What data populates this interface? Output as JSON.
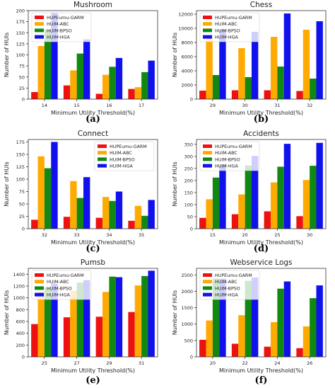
{
  "series_names": [
    "HUPEumu-GARM",
    "HUIM-ABC",
    "HUIM-BPSO",
    "HUIM-HGA"
  ],
  "series_colors": [
    "#ee1111",
    "#ffaa00",
    "#118811",
    "#1111ee"
  ],
  "xlabel": "Minimum Utility Threshold(%)",
  "ylabel": "Number of HUIs",
  "chart_data": [
    {
      "type": "bar",
      "title": "Mushroom",
      "caption": "(a)",
      "categories": [
        "14",
        "15",
        "16",
        "17"
      ],
      "ylim": [
        0,
        200
      ],
      "yticks": [
        0,
        25,
        50,
        75,
        100,
        125,
        150,
        175,
        200
      ],
      "xlabel": "Minimum Utility Threshold(%)",
      "ylabel": "Number of HUIs",
      "series": [
        {
          "name": "HUPEumu-GARM",
          "values": [
            16,
            31,
            12,
            23
          ]
        },
        {
          "name": "HUIM-ABC",
          "values": [
            120,
            65,
            55,
            27
          ]
        },
        {
          "name": "HUIM-BPSO",
          "values": [
            157,
            103,
            73,
            61
          ]
        },
        {
          "name": "HUIM-HGA",
          "values": [
            195,
            135,
            93,
            87
          ]
        }
      ],
      "legend": "top-left"
    },
    {
      "type": "bar",
      "title": "Chess",
      "caption": "(b)",
      "categories": [
        "29",
        "30",
        "31",
        "32"
      ],
      "ylim": [
        0,
        12500
      ],
      "yticks": [
        0,
        2000,
        4000,
        6000,
        8000,
        10000,
        12000
      ],
      "xlabel": "Minimum Utility Threshold(%)",
      "ylabel": "Number of HUIs",
      "series": [
        {
          "name": "HUPEumu-GARM",
          "values": [
            1200,
            1250,
            1250,
            1150
          ]
        },
        {
          "name": "HUIM-ABC",
          "values": [
            8800,
            7200,
            8800,
            9800
          ]
        },
        {
          "name": "HUIM-BPSO",
          "values": [
            3400,
            3100,
            4600,
            2900
          ]
        },
        {
          "name": "HUIM-HGA",
          "values": [
            9800,
            9500,
            12100,
            11000
          ]
        }
      ],
      "legend": "top-left"
    },
    {
      "type": "bar",
      "title": "Connect",
      "caption": "(c)",
      "categories": [
        "32",
        "33",
        "34",
        "35"
      ],
      "ylim": [
        0,
        180
      ],
      "yticks": [
        0,
        25,
        50,
        75,
        100,
        125,
        150,
        175
      ],
      "xlabel": "Minimum Utility Threshold(%)",
      "ylabel": "Number of HUIs",
      "series": [
        {
          "name": "HUPEumu-GARM",
          "values": [
            18,
            24,
            22,
            16
          ]
        },
        {
          "name": "HUIM-ABC",
          "values": [
            146,
            96,
            64,
            46
          ]
        },
        {
          "name": "HUIM-BPSO",
          "values": [
            122,
            62,
            56,
            26
          ]
        },
        {
          "name": "HUIM-HGA",
          "values": [
            175,
            104,
            75,
            58
          ]
        }
      ],
      "legend": "top-right"
    },
    {
      "type": "bar",
      "title": "Accidents",
      "caption": "(d)",
      "categories": [
        "15",
        "20",
        "25",
        "30"
      ],
      "ylim": [
        0,
        370
      ],
      "yticks": [
        0,
        50,
        100,
        150,
        200,
        250,
        300,
        350
      ],
      "xlabel": "Minimum Utility Threshold(%)",
      "ylabel": "Number of HUIs",
      "series": [
        {
          "name": "HUPEumu-GARM",
          "values": [
            45,
            60,
            72,
            52
          ]
        },
        {
          "name": "HUIM-ABC",
          "values": [
            122,
            142,
            192,
            202
          ]
        },
        {
          "name": "HUIM-BPSO",
          "values": [
            212,
            262,
            257,
            261
          ]
        },
        {
          "name": "HUIM-HGA",
          "values": [
            265,
            302,
            352,
            356
          ]
        }
      ],
      "legend": "top-left"
    },
    {
      "type": "bar",
      "title": "Pumsb",
      "caption": "(e)",
      "categories": [
        "25",
        "27",
        "29",
        "31"
      ],
      "ylim": [
        0,
        1500
      ],
      "yticks": [
        0,
        200,
        400,
        600,
        800,
        1000,
        1200,
        1400
      ],
      "xlabel": "Minimum Utility Threshold(%)",
      "ylabel": "Number of HUIs",
      "series": [
        {
          "name": "HUPEumu-GARM",
          "values": [
            555,
            670,
            680,
            760
          ]
        },
        {
          "name": "HUIM-ABC",
          "values": [
            1100,
            1120,
            1100,
            1210
          ]
        },
        {
          "name": "HUIM-BPSO",
          "values": [
            1180,
            1260,
            1360,
            1370
          ]
        },
        {
          "name": "HUIM-HGA",
          "values": [
            1240,
            1300,
            1350,
            1460
          ]
        }
      ],
      "legend": "top-left"
    },
    {
      "type": "bar",
      "title": "Webservice Logs",
      "caption": "(f)",
      "categories": [
        "20",
        "22",
        "24",
        "26"
      ],
      "ylim": [
        0,
        2700
      ],
      "yticks": [
        0,
        500,
        1000,
        1500,
        2000,
        2500
      ],
      "xlabel": "Minimum Utility Threshold(%)",
      "ylabel": "Number of HUIs",
      "series": [
        {
          "name": "HUPEumu-GARM",
          "values": [
            520,
            400,
            310,
            265
          ]
        },
        {
          "name": "HUIM-ABC",
          "values": [
            1110,
            1270,
            1060,
            930
          ]
        },
        {
          "name": "HUIM-BPSO",
          "values": [
            2390,
            2320,
            2080,
            1790
          ]
        },
        {
          "name": "HUIM-HGA",
          "values": [
            2380,
            2420,
            2300,
            2180
          ]
        }
      ],
      "legend": "top-left"
    }
  ]
}
